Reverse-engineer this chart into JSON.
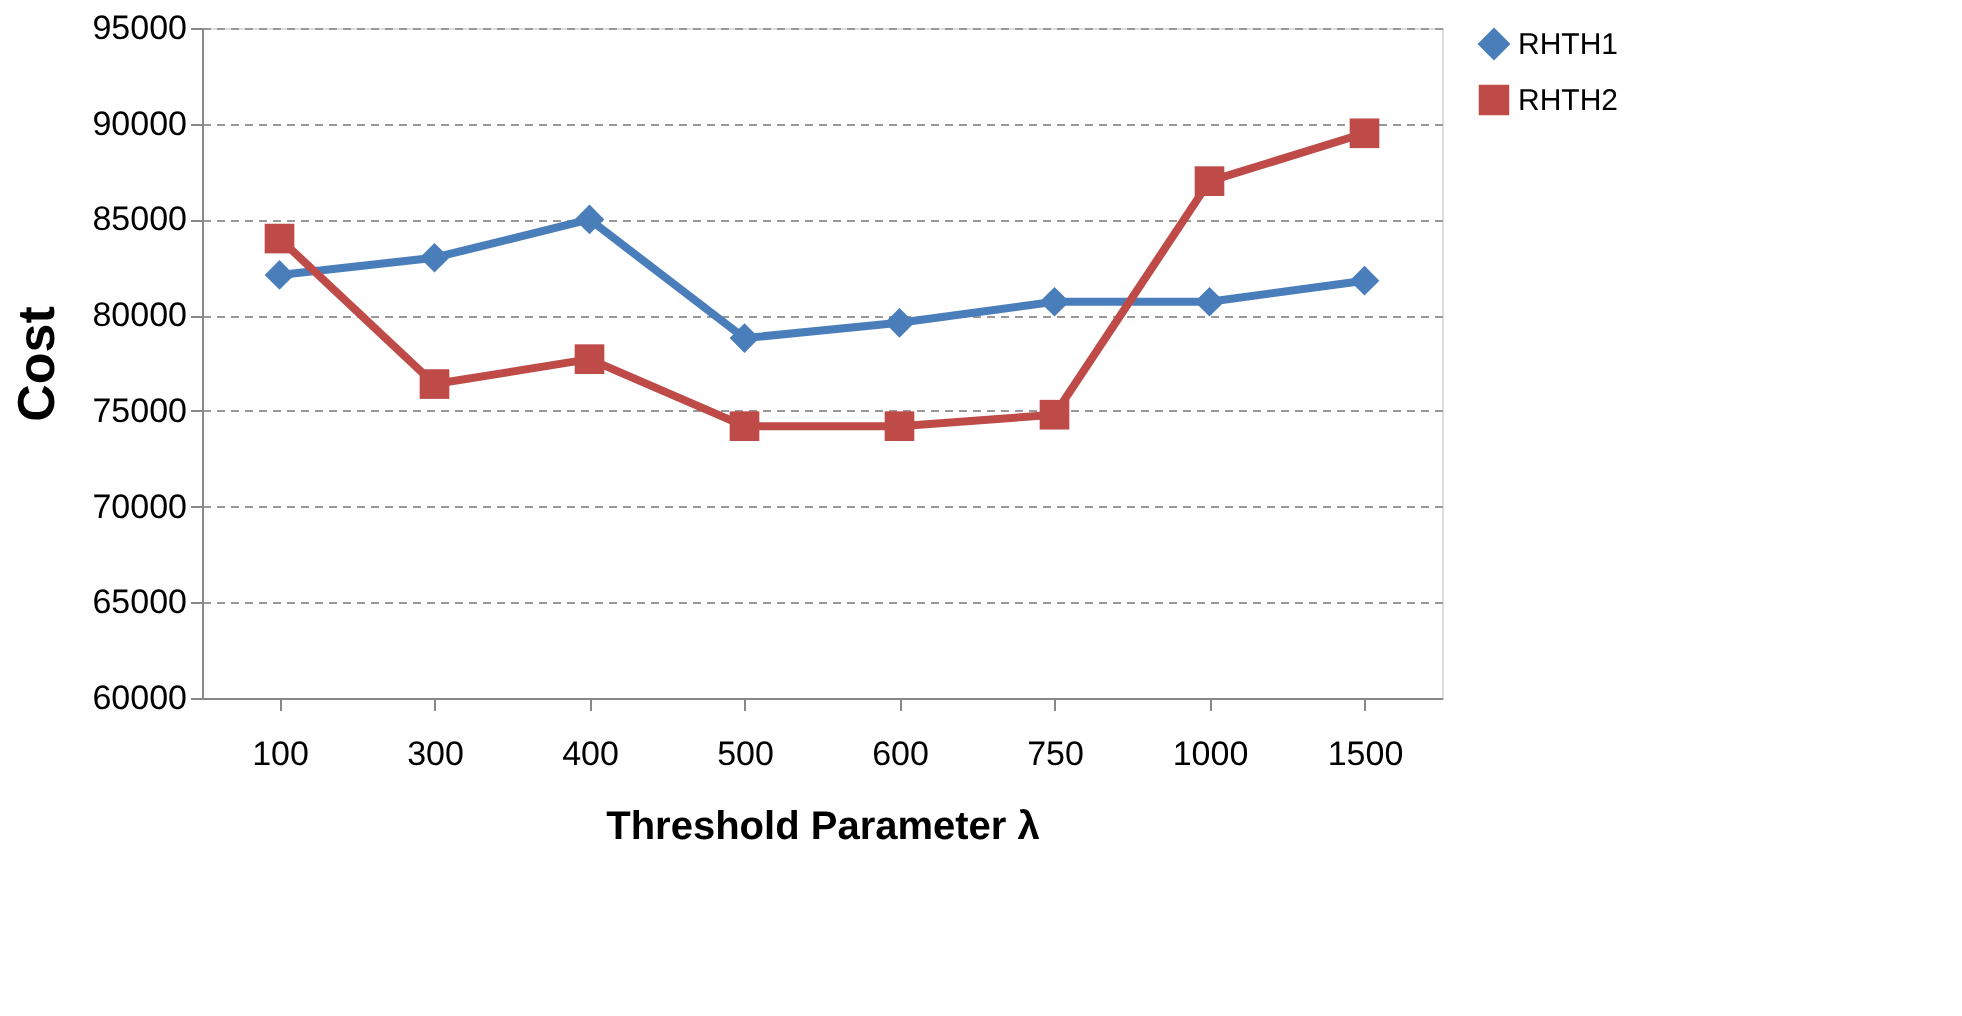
{
  "chart_data": {
    "type": "line",
    "xlabel": "Threshold Parameter λ",
    "ylabel": "Cost",
    "categories": [
      "100",
      "300",
      "400",
      "500",
      "600",
      "750",
      "1000",
      "1500"
    ],
    "series": [
      {
        "name": "RHTH1",
        "color": "#4a7ebb",
        "marker": "diamond",
        "values": [
          82100,
          83000,
          85000,
          78800,
          79600,
          80700,
          80700,
          81800
        ]
      },
      {
        "name": "RHTH2",
        "color": "#be4b48",
        "marker": "square",
        "values": [
          84000,
          76400,
          77700,
          74200,
          74200,
          74800,
          87000,
          89500
        ]
      }
    ],
    "ylim": [
      60000,
      95000
    ],
    "yticks": [
      60000,
      65000,
      70000,
      75000,
      80000,
      85000,
      90000,
      95000
    ],
    "grid": "y",
    "legend": "right",
    "line_style": "solid"
  }
}
